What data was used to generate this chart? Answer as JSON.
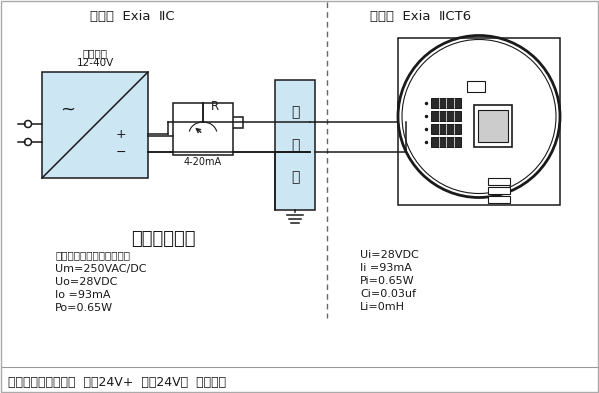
{
  "bg_color": "#ffffff",
  "title_left": "安全区  Exia  ⅡC",
  "title_right": "危险区  Exia  ⅡCT6",
  "subtitle": "本安型接线图",
  "left_specs_0": "（参见安全栅适用说明书）",
  "left_specs_1": "Um=250VAC/DC",
  "left_specs_2": "Uo=28VDC",
  "left_specs_3": "Io =93mA",
  "left_specs_4": "Po=0.65W",
  "right_specs": [
    "Ui=28VDC",
    "Ii =93mA",
    "Pi=0.65W",
    "Ci=0.03uf",
    "Li=0mH"
  ],
  "note": "注：一体化接线方式  红：24V+  蓝：24V－  黑：接地",
  "power_label1": "12-40V",
  "power_label2": "直流电源",
  "meter_label": "4-20mA",
  "resistor_label": "R",
  "barrier_chars": [
    "安",
    "全",
    "栅"
  ],
  "light_blue": "#cce6f4",
  "black": "#1a1a1a"
}
